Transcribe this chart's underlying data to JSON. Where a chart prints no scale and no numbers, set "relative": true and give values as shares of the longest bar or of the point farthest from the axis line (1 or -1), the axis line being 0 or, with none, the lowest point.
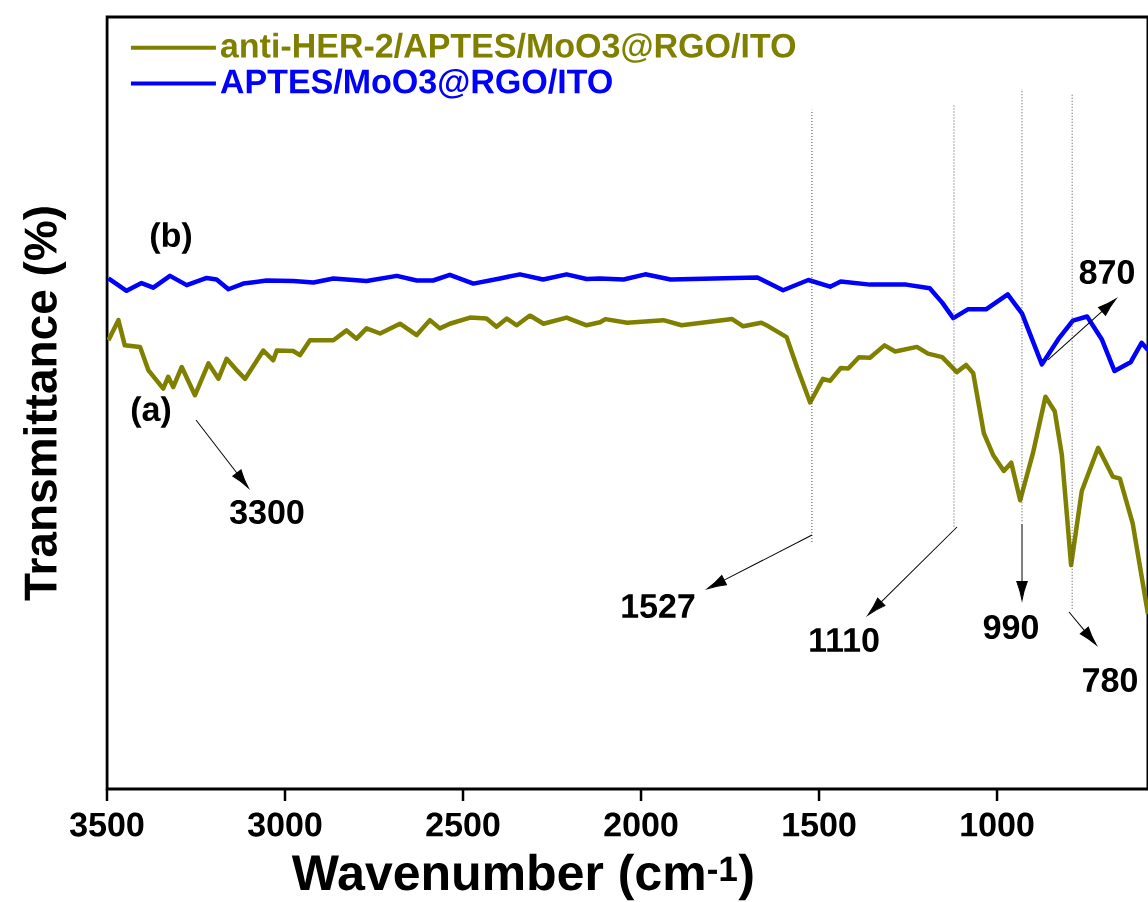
{
  "chart_data": {
    "type": "line",
    "relative": true,
    "xlabel": "Wavenumber (cm$^{-1}$)",
    "ylabel": "Transmittance (%)",
    "xlim": [
      3500,
      576
    ],
    "xticks": [
      3500,
      3000,
      2500,
      2000,
      1500,
      1000
    ],
    "legend": "top left",
    "line_style": "solid",
    "series": [
      {
        "name": "anti-HER-2/APTES/MoO3@RGO/ITO",
        "color": "#808000",
        "x": [
          3496,
          3468,
          3450,
          3407,
          3384,
          3342,
          3328,
          3314,
          3290,
          3253,
          3215,
          3187,
          3164,
          3136,
          3112,
          3061,
          3033,
          3023,
          2977,
          2958,
          2930,
          2864,
          2827,
          2799,
          2771,
          2733,
          2677,
          2630,
          2593,
          2565,
          2537,
          2480,
          2434,
          2406,
          2377,
          2349,
          2312,
          2274,
          2209,
          2153,
          2115,
          2100,
          2039,
          1937,
          1886,
          1744,
          1713,
          1662,
          1642,
          1591,
          1561,
          1525,
          1489,
          1469,
          1439,
          1418,
          1388,
          1357,
          1316,
          1286,
          1225,
          1194,
          1154,
          1113,
          1087,
          1067,
          1037,
          1011,
          981,
          960,
          935,
          899,
          864,
          838,
          818,
          792,
          762,
          716,
          675,
          655,
          619,
          576
        ],
        "values": [
          0.872,
          0.911,
          0.862,
          0.859,
          0.814,
          0.778,
          0.801,
          0.781,
          0.82,
          0.765,
          0.827,
          0.797,
          0.836,
          0.814,
          0.797,
          0.852,
          0.833,
          0.852,
          0.851,
          0.843,
          0.872,
          0.872,
          0.891,
          0.875,
          0.895,
          0.885,
          0.904,
          0.882,
          0.911,
          0.895,
          0.904,
          0.916,
          0.914,
          0.898,
          0.914,
          0.901,
          0.92,
          0.904,
          0.916,
          0.901,
          0.907,
          0.913,
          0.906,
          0.911,
          0.901,
          0.913,
          0.899,
          0.906,
          0.899,
          0.878,
          0.818,
          0.751,
          0.797,
          0.793,
          0.818,
          0.817,
          0.839,
          0.838,
          0.862,
          0.85,
          0.859,
          0.846,
          0.839,
          0.81,
          0.824,
          0.808,
          0.691,
          0.649,
          0.618,
          0.634,
          0.561,
          0.653,
          0.762,
          0.734,
          0.649,
          0.435,
          0.579,
          0.663,
          0.607,
          0.603,
          0.516,
          0.34
        ]
      },
      {
        "name": "APTES/MoO3@RGO/ITO",
        "color": "#0000ff",
        "x": [
          3496,
          3445,
          3403,
          3370,
          3323,
          3276,
          3220,
          3192,
          3159,
          3117,
          3052,
          2977,
          2920,
          2864,
          2771,
          2686,
          2630,
          2584,
          2537,
          2471,
          2396,
          2340,
          2275,
          2209,
          2153,
          2115,
          2049,
          1988,
          1917,
          1673,
          1601,
          1530,
          1469,
          1439,
          1357,
          1255,
          1189,
          1154,
          1123,
          1082,
          1031,
          970,
          930,
          874,
          828,
          787,
          747,
          706,
          670,
          625,
          594,
          576
        ],
        "values": [
          0.992,
          0.968,
          0.983,
          0.974,
          0.997,
          0.979,
          0.993,
          0.99,
          0.971,
          0.982,
          0.988,
          0.987,
          0.984,
          0.992,
          0.987,
          0.997,
          0.988,
          0.988,
          0.999,
          0.982,
          0.992,
          1.0,
          0.99,
          1.0,
          0.991,
          0.992,
          0.99,
          1.0,
          0.99,
          0.994,
          0.969,
          0.989,
          0.976,
          0.986,
          0.98,
          0.98,
          0.973,
          0.945,
          0.915,
          0.932,
          0.932,
          0.961,
          0.924,
          0.825,
          0.874,
          0.91,
          0.918,
          0.874,
          0.812,
          0.829,
          0.867,
          0.853
        ]
      }
    ],
    "ref_lines": [
      {
        "axis": "x",
        "value": 1520,
        "line_style": "dotted"
      },
      {
        "axis": "x",
        "value": 1121,
        "line_style": "dotted"
      },
      {
        "axis": "x",
        "value": 930,
        "line_style": "dotted"
      },
      {
        "axis": "x",
        "value": 789,
        "line_style": "dotted"
      }
    ],
    "annotations": [
      "(b)",
      "(a)",
      "3300",
      "1527",
      "1110",
      "990",
      "780",
      "870"
    ]
  }
}
